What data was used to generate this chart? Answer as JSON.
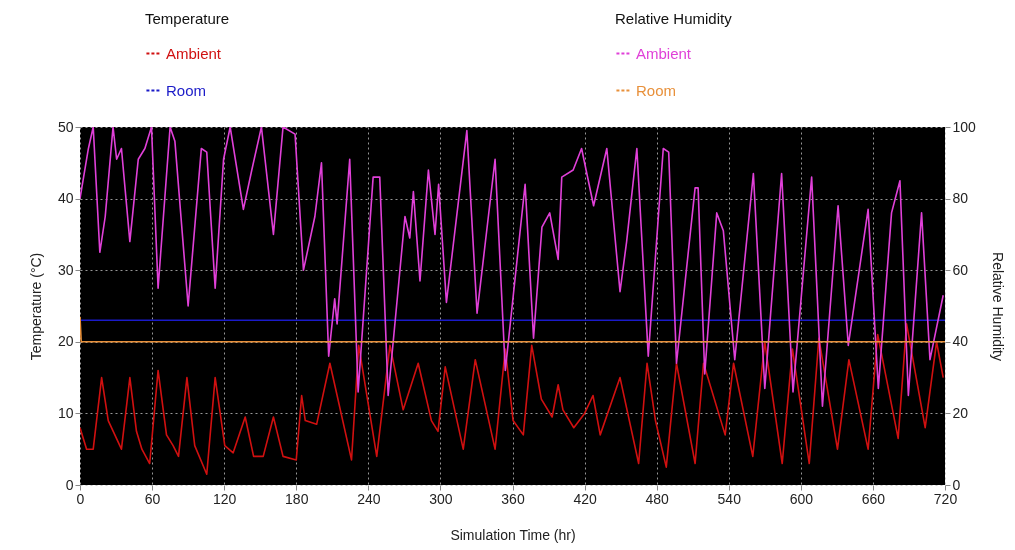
{
  "chart_data": {
    "type": "line",
    "xlabel": "Simulation Time (hr)",
    "ylabel": "Temperature (°C)",
    "y2label": "Relative Humidity",
    "legend_title": [
      "Temperature",
      "Relative Humidity"
    ],
    "xlim": [
      0,
      720
    ],
    "xticks": [
      0,
      60,
      120,
      180,
      240,
      300,
      360,
      420,
      480,
      540,
      600,
      660,
      720
    ],
    "ylim": [
      0,
      50
    ],
    "yticks": [
      0,
      10,
      20,
      30,
      40,
      50
    ],
    "y2lim": [
      0,
      100
    ],
    "y2ticks": [
      0,
      20,
      40,
      60,
      80,
      100
    ],
    "grid": true,
    "legend": "top",
    "series": [
      {
        "name": "Ambient",
        "color": "#d01010",
        "axis": "y",
        "x": [
          0,
          5.5,
          11,
          18,
          23.5,
          29,
          34.5,
          41.5,
          47,
          51.5,
          58,
          65,
          72,
          77.5,
          82,
          89,
          95.5,
          105.5,
          112.5,
          120.5,
          127.5,
          137.5,
          144.5,
          152.5,
          161,
          169,
          180,
          184.5,
          187.5,
          197,
          208,
          226,
          232,
          247,
          258,
          269,
          281.5,
          292.5,
          298,
          304,
          319,
          329,
          345.5,
          354,
          360.5,
          369,
          376,
          384,
          393,
          398,
          402,
          411,
          420,
          427,
          433,
          449.5,
          465,
          472,
          479,
          488,
          496.5,
          512,
          519,
          537,
          544,
          560,
          570,
          584.5,
          593,
          607,
          615,
          630.5,
          640,
          656,
          664,
          681,
          688,
          703.5,
          713,
          718.5
        ],
        "values": [
          8,
          5,
          5,
          15,
          9,
          7,
          5,
          15,
          7.5,
          5,
          3,
          16,
          7,
          5.5,
          4,
          15,
          5.5,
          1.5,
          15,
          5.5,
          4.5,
          9.5,
          4,
          4,
          9.5,
          4,
          3.5,
          12.5,
          9,
          8.5,
          17,
          3.5,
          19.5,
          4,
          19.5,
          10.5,
          17,
          9,
          7.5,
          16.5,
          5,
          17.5,
          5,
          19,
          9,
          7,
          19.5,
          12,
          9.5,
          14,
          10.5,
          8,
          10,
          12.5,
          7,
          15,
          3,
          17,
          9,
          2.5,
          17,
          3,
          17,
          7,
          17,
          4,
          20,
          3,
          19,
          3,
          20.5,
          5,
          17.5,
          5,
          21,
          6.5,
          22.5,
          8,
          20,
          15
        ]
      },
      {
        "name": "Room",
        "color": "#1a1ac8",
        "axis": "y",
        "x": [
          0,
          720
        ],
        "values": [
          23,
          23
        ]
      },
      {
        "name": "Ambient",
        "color": "#e040d8",
        "axis": "y2",
        "x": [
          0,
          7,
          11,
          16.5,
          21,
          27.5,
          30.5,
          34.5,
          41.5,
          48.5,
          54,
          59.5,
          65,
          75,
          79,
          90,
          101,
          105.5,
          112.5,
          119.5,
          125,
          136,
          143,
          151,
          161,
          169,
          179,
          186,
          195.5,
          201,
          207,
          212,
          214,
          224.5,
          231.5,
          244,
          249.5,
          256.5,
          270.5,
          274.5,
          277.5,
          283,
          290,
          295.5,
          298.5,
          305,
          322,
          330.5,
          345.5,
          354,
          370.5,
          377.5,
          384.5,
          391,
          398,
          401,
          410.5,
          417.5,
          427.5,
          438.5,
          449.5,
          455,
          463.5,
          473,
          485.5,
          490,
          496.5,
          512,
          514.5,
          520,
          530,
          535.5,
          545,
          560.5,
          570,
          584,
          593.5,
          609,
          618,
          631,
          639.5,
          656,
          664.5,
          675.5,
          682.5,
          689.5,
          700.5,
          707.5,
          718.5
        ],
        "values": [
          80,
          94,
          100,
          65,
          75,
          100,
          91,
          94,
          68,
          91,
          94,
          100,
          55,
          100,
          96,
          50,
          94,
          93,
          55,
          91,
          100,
          77,
          88,
          100,
          70,
          100,
          98,
          60,
          75,
          90,
          36,
          52,
          45,
          91,
          26,
          86,
          86,
          25,
          75,
          69,
          82,
          57,
          88,
          70,
          84,
          51,
          99,
          48,
          91,
          32,
          84,
          41,
          72,
          76,
          63,
          86,
          88,
          94,
          78,
          94,
          54,
          68,
          94,
          36,
          94,
          93,
          34,
          83,
          83,
          31,
          76,
          71,
          35,
          87,
          27,
          87,
          26,
          86,
          22,
          78,
          39,
          77,
          27,
          76,
          85,
          25,
          76,
          35,
          53
        ]
      },
      {
        "name": "Room",
        "color": "#e8903a",
        "axis": "y2",
        "x": [
          0,
          1,
          720
        ],
        "values": [
          47,
          40,
          40
        ]
      }
    ]
  }
}
